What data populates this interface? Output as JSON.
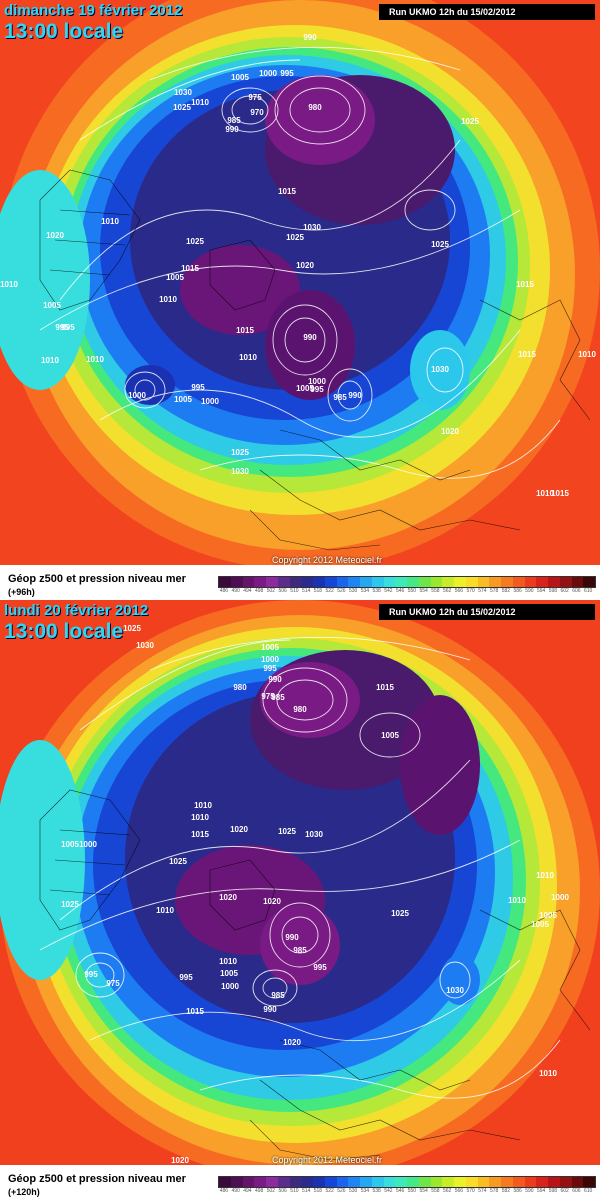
{
  "panels": [
    {
      "date": "dimanche 19 février 2012",
      "time": "13:00 locale",
      "run": "Run UKMO 12h du 15/02/2012",
      "copyright": "Copyright 2012 Meteociel.fr",
      "legend_label": "Géop z500 et pression niveau mer",
      "lead": "(+96h)",
      "isobars": [
        "990",
        "1005",
        "1000",
        "995",
        "975",
        "970",
        "985",
        "990",
        "980",
        "1030",
        "1010",
        "1025",
        "1025",
        "1015",
        "1030",
        "1025",
        "1010",
        "1020",
        "1025",
        "1020",
        "1015",
        "1005",
        "1010",
        "1005",
        "995",
        "1015",
        "990",
        "1010",
        "1000",
        "995",
        "1005",
        "985",
        "990",
        "995",
        "1000",
        "1005",
        "1000",
        "1015",
        "1030",
        "1010",
        "1025",
        "1020",
        "1030",
        "1025",
        "1010",
        "1015",
        "1010",
        "1015",
        "1010",
        "1010",
        "995"
      ]
    },
    {
      "date": "lundi 20 février 2012",
      "time": "13:00 locale",
      "run": "Run UKMO 12h du 15/02/2012",
      "copyright": "Copyright 2012 Meteociel.fr",
      "legend_label": "Géop z500 et pression niveau mer",
      "lead": "(+120h)",
      "isobars": [
        "1025",
        "1030",
        "1005",
        "1000",
        "995",
        "990",
        "980",
        "975",
        "985",
        "980",
        "1015",
        "1005",
        "1010",
        "1010",
        "1015",
        "1020",
        "1025",
        "1030",
        "1005",
        "1000",
        "1025",
        "1025",
        "1010",
        "1020",
        "1020",
        "1010",
        "990",
        "985",
        "995",
        "995",
        "1005",
        "1000",
        "985",
        "990",
        "975",
        "995",
        "1010",
        "1005",
        "1030",
        "1025",
        "1020",
        "1015",
        "1010",
        "1000",
        "1005",
        "1010",
        "1020"
      ]
    }
  ],
  "z500_scale": {
    "ticks": [
      "486",
      "490",
      "494",
      "498",
      "502",
      "506",
      "510",
      "514",
      "518",
      "522",
      "526",
      "530",
      "534",
      "538",
      "542",
      "546",
      "550",
      "554",
      "558",
      "562",
      "566",
      "570",
      "574",
      "578",
      "582",
      "586",
      "590",
      "594",
      "598",
      "602",
      "606",
      "610"
    ],
    "colors": [
      "#3a0a3a",
      "#4e0f52",
      "#66146a",
      "#7a1a84",
      "#8e2aa0",
      "#5c2c8c",
      "#3d2a7c",
      "#2a2a8e",
      "#1a32b2",
      "#1446d8",
      "#1a64ee",
      "#1e86f4",
      "#24a8f0",
      "#2cc8ec",
      "#38dede",
      "#3ee8b8",
      "#44e884",
      "#6ee64a",
      "#9ae82e",
      "#c6ec2a",
      "#ecf02a",
      "#f8dc28",
      "#f8bc24",
      "#f89a22",
      "#f67a20",
      "#f25a1e",
      "#ec3a1c",
      "#d8221a",
      "#b81418",
      "#941012",
      "#6a0a0a",
      "#3a0606"
    ]
  }
}
